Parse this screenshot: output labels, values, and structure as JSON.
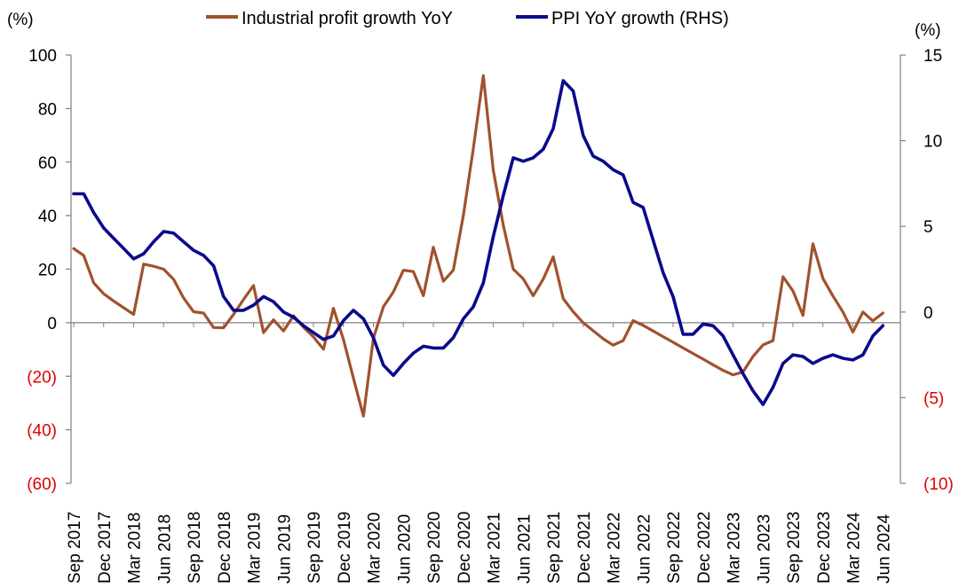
{
  "chart_data": {
    "type": "line",
    "left_unit": "(%)",
    "right_unit": "(%)",
    "colors": {
      "profit": "#a0522d",
      "ppi": "#0a0a8c",
      "negative_tick": "#e00000",
      "axis": "#808080"
    },
    "left_axis": {
      "ylim": [
        -60,
        100
      ],
      "ticks": [
        100,
        80,
        60,
        40,
        20,
        0,
        -20,
        -40,
        -60
      ],
      "tick_labels": [
        "100",
        "80",
        "60",
        "40",
        "20",
        "0",
        "(20)",
        "(40)",
        "(60)"
      ]
    },
    "right_axis": {
      "ylim": [
        -10,
        15
      ],
      "ticks": [
        15,
        10,
        5,
        0,
        -5,
        -10
      ],
      "tick_labels": [
        "15",
        "10",
        "5",
        "0",
        "(5)",
        "(10)"
      ]
    },
    "x_tick_labels": [
      "Sep 2017",
      "Dec 2017",
      "Mar 2018",
      "Jun 2018",
      "Sep 2018",
      "Dec 2018",
      "Mar 2019",
      "Jun 2019",
      "Sep 2019",
      "Dec 2019",
      "Mar 2020",
      "Jun 2020",
      "Sep 2020",
      "Dec 2020",
      "Mar 2021",
      "Jun 2021",
      "Sep 2021",
      "Dec 2021",
      "Mar 2022",
      "Jun 2022",
      "Sep 2022",
      "Dec 2022",
      "Mar 2023",
      "Jun 2023",
      "Sep 2023",
      "Dec 2023",
      "Mar 2024",
      "Jun 2024"
    ],
    "x": [
      "2017-09",
      "2017-10",
      "2017-11",
      "2017-12",
      "2018-01",
      "2018-02",
      "2018-03",
      "2018-04",
      "2018-05",
      "2018-06",
      "2018-07",
      "2018-08",
      "2018-09",
      "2018-10",
      "2018-11",
      "2018-12",
      "2019-01",
      "2019-02",
      "2019-03",
      "2019-04",
      "2019-05",
      "2019-06",
      "2019-07",
      "2019-08",
      "2019-09",
      "2019-10",
      "2019-11",
      "2019-12",
      "2020-01",
      "2020-02",
      "2020-03",
      "2020-04",
      "2020-05",
      "2020-06",
      "2020-07",
      "2020-08",
      "2020-09",
      "2020-10",
      "2020-11",
      "2020-12",
      "2021-01",
      "2021-02",
      "2021-03",
      "2021-04",
      "2021-05",
      "2021-06",
      "2021-07",
      "2021-08",
      "2021-09",
      "2021-10",
      "2021-11",
      "2021-12",
      "2022-01",
      "2022-02",
      "2022-03",
      "2022-04",
      "2022-05",
      "2022-06",
      "2022-07",
      "2022-08",
      "2022-09",
      "2022-10",
      "2022-11",
      "2022-12",
      "2023-01",
      "2023-02",
      "2023-03",
      "2023-04",
      "2023-05",
      "2023-06",
      "2023-07",
      "2023-08",
      "2023-09",
      "2023-10",
      "2023-11",
      "2023-12",
      "2024-01",
      "2024-02",
      "2024-03",
      "2024-04",
      "2024-05",
      "2024-06"
    ],
    "series": [
      {
        "name": "Industrial profit growth YoY",
        "axis": "left",
        "values": [
          27.7,
          25.1,
          14.9,
          10.8,
          8.1,
          5.6,
          3.1,
          21.9,
          21.1,
          20.0,
          16.2,
          9.2,
          4.1,
          3.6,
          -1.8,
          -1.9,
          3.1,
          8.7,
          13.9,
          -3.7,
          1.1,
          -3.1,
          2.6,
          -1.7,
          -5.3,
          -9.9,
          5.4,
          -6.3,
          -20.7,
          -34.9,
          -5.8,
          6.0,
          11.5,
          19.6,
          19.1,
          10.1,
          28.2,
          15.5,
          19.6,
          40.0,
          65.0,
          92.3,
          57.0,
          36.4,
          20.0,
          16.4,
          10.1,
          16.3,
          24.6,
          9.0,
          4.1,
          0.0,
          -3.0,
          -6.0,
          -8.4,
          -6.7,
          0.8,
          -1.0,
          -3.1,
          -5.2,
          -7.3,
          -9.4,
          -11.5,
          -13.6,
          -15.7,
          -17.8,
          -19.5,
          -18.4,
          -12.6,
          -8.3,
          -6.7,
          17.2,
          11.9,
          2.7,
          29.5,
          16.5,
          10.0,
          4.0,
          -3.5,
          4.0,
          0.7,
          3.6
        ]
      },
      {
        "name": "PPI YoY growth (RHS)",
        "axis": "right",
        "values": [
          6.9,
          6.9,
          5.8,
          4.9,
          4.3,
          3.7,
          3.1,
          3.4,
          4.1,
          4.7,
          4.6,
          4.1,
          3.6,
          3.3,
          2.7,
          0.9,
          0.1,
          0.1,
          0.4,
          0.9,
          0.6,
          0.0,
          -0.3,
          -0.8,
          -1.2,
          -1.6,
          -1.4,
          -0.5,
          0.1,
          -0.4,
          -1.5,
          -3.1,
          -3.7,
          -3.0,
          -2.4,
          -2.0,
          -2.1,
          -2.1,
          -1.5,
          -0.4,
          0.3,
          1.7,
          4.4,
          6.8,
          9.0,
          8.8,
          9.0,
          9.5,
          10.7,
          13.5,
          12.9,
          10.3,
          9.1,
          8.8,
          8.3,
          8.0,
          6.4,
          6.1,
          4.2,
          2.3,
          0.9,
          -1.3,
          -1.3,
          -0.7,
          -0.8,
          -1.4,
          -2.5,
          -3.6,
          -4.6,
          -5.4,
          -4.4,
          -3.0,
          -2.5,
          -2.6,
          -3.0,
          -2.7,
          -2.5,
          -2.7,
          -2.8,
          -2.5,
          -1.4,
          -0.8
        ]
      }
    ]
  }
}
